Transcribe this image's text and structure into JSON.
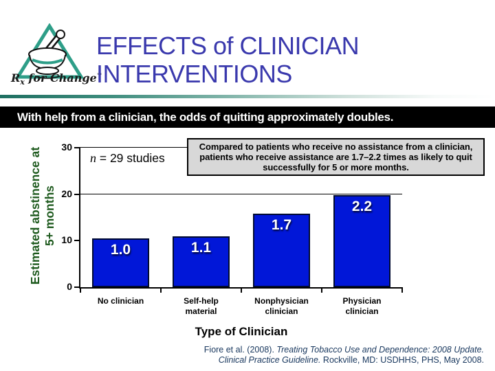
{
  "colors": {
    "title_blue": "#3a39ad",
    "teal": "#2e9e88",
    "bar_blue": "#0117d8",
    "ylabel_green": "#1e5a1e",
    "citation_navy": "#17365d",
    "callout_bg": "#d8d8d8",
    "banner_bg": "#000000",
    "banner_text": "#ffffff"
  },
  "header": {
    "logo_r": "R",
    "logo_x": "x",
    "logo_rest": " for Change",
    "logo_tm": "™",
    "title_line1": "EFFECTS of CLINICIAN",
    "title_line2": "INTERVENTIONS"
  },
  "banner": {
    "text": "With help from a clinician, the odds of quitting approximately doubles."
  },
  "chart": {
    "note_n": "n",
    "note_rest": " = 29 studies",
    "ylabel_line1": "Estimated abstinence at",
    "ylabel_line2": "5+ months",
    "callout": "Compared to patients who receive no assistance from a clinician, patients who receive assistance are 1.7–2.2 times as likely to quit successfully for 5 or more months."
  },
  "chart_data": {
    "type": "bar",
    "categories": [
      "No clinician",
      "Self-help\nmaterial",
      "Nonphysician\nclinician",
      "Physician\nclinician"
    ],
    "values": [
      10.5,
      11.0,
      15.8,
      19.8
    ],
    "bar_labels": [
      "1.0",
      "1.1",
      "1.7",
      "2.2"
    ],
    "annotation": "n = 29 studies",
    "xlabel": "Type of Clinician",
    "ylabel": "Estimated abstinence at 5+ months",
    "ylim": [
      0,
      30
    ],
    "yticks": [
      0,
      10,
      20,
      30
    ],
    "gridlines": [
      20,
      30
    ],
    "bar_color": "#0117d8",
    "legend": "none"
  },
  "footer": {
    "cite_r1": "Fiore et al. (2008). ",
    "cite_i1": "Treating Tobacco Use and Dependence: 2008 Update.",
    "cite_i2": "Clinical Practice Guideline.",
    "cite_r2": " Rockville, MD: USDHHS, PHS, May 2008."
  }
}
